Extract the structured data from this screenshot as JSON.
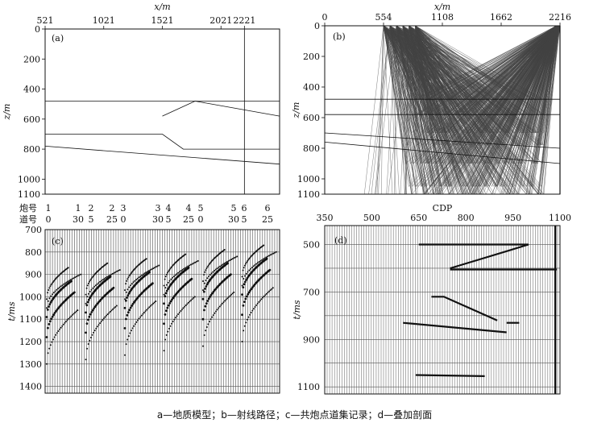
{
  "caption": "a—地质模型；b—射线路径；c—共炮点道集记录；d—叠加剖面",
  "chart_data": [
    {
      "type": "line",
      "panel": "(a)",
      "xlabel": "x/m",
      "ylabel": "z/m",
      "x_ticks": [
        521,
        1021,
        1521,
        2021,
        2221
      ],
      "y_ticks": [
        0,
        200,
        400,
        600,
        800,
        1000,
        1100
      ],
      "xlim": [
        521,
        2521
      ],
      "ylim": [
        0,
        1100
      ],
      "x_axis_position": "top",
      "vertical_line_x": 2221,
      "series": [
        {
          "x": [
            521,
            2521
          ],
          "y": [
            480,
            480
          ]
        },
        {
          "x": [
            1521,
            1800,
            2521
          ],
          "y": [
            580,
            480,
            580
          ]
        },
        {
          "x": [
            521,
            1521,
            1700,
            2521
          ],
          "y": [
            700,
            700,
            800,
            800
          ]
        },
        {
          "x": [
            521,
            2521
          ],
          "y": [
            780,
            900
          ]
        }
      ]
    },
    {
      "type": "line",
      "panel": "(b)",
      "xlabel": "x/m",
      "ylabel": "z/m",
      "x_ticks": [
        0,
        554,
        1108,
        1662,
        2216
      ],
      "y_ticks": [
        0,
        200,
        400,
        600,
        800,
        1000,
        1100
      ],
      "xlim": [
        0,
        2216
      ],
      "ylim": [
        0,
        1100
      ],
      "x_axis_position": "top",
      "vertical_line_x": 2216,
      "series": [
        {
          "x": [
            0,
            2216
          ],
          "y": [
            480,
            480
          ]
        },
        {
          "x": [
            0,
            2216
          ],
          "y": [
            580,
            580
          ]
        },
        {
          "x": [
            0,
            2216
          ],
          "y": [
            700,
            800
          ]
        },
        {
          "x": [
            0,
            2216
          ],
          "y": [
            760,
            900
          ]
        }
      ],
      "note_rays": "dense ray paths from shots near x 554–880 to receivers near x 2216"
    },
    {
      "type": "scatter",
      "panel": "(c)",
      "ylabel": "t/ms",
      "row_labels": [
        "炮号",
        "道号"
      ],
      "shot_numbers": [
        "1",
        "1",
        "2",
        "2",
        "3",
        "3",
        "4",
        "4",
        "5",
        "5",
        "6",
        "6"
      ],
      "trace_numbers": [
        "0",
        "30",
        "5",
        "25",
        "0",
        "30",
        "5",
        "25",
        "0",
        "30",
        "5",
        "25"
      ],
      "y_ticks": [
        700,
        800,
        900,
        1000,
        1100,
        1200,
        1300,
        1400
      ],
      "ylim": [
        700,
        1430
      ],
      "grid": true
    },
    {
      "type": "line",
      "panel": "(d)",
      "xlabel": "CDP",
      "ylabel": "t/ms",
      "x_ticks": [
        350,
        500,
        650,
        800,
        950,
        1100
      ],
      "y_ticks": [
        500,
        700,
        900,
        1100
      ],
      "xlim": [
        350,
        1100
      ],
      "ylim": [
        420,
        1130
      ],
      "x_axis_position": "top",
      "grid": true,
      "series": [
        {
          "x": [
            650,
            1000
          ],
          "y": [
            500,
            500
          ]
        },
        {
          "x": [
            750,
            1000
          ],
          "y": [
            600,
            500
          ]
        },
        {
          "x": [
            750,
            1090
          ],
          "y": [
            605,
            605
          ]
        },
        {
          "x": [
            690,
            730,
            900
          ],
          "y": [
            720,
            720,
            820
          ]
        },
        {
          "x": [
            600,
            930
          ],
          "y": [
            830,
            870
          ]
        },
        {
          "x": [
            930,
            970
          ],
          "y": [
            830,
            830
          ]
        },
        {
          "x": [
            640,
            860
          ],
          "y": [
            1050,
            1055
          ]
        },
        {
          "x": [
            1085,
            1085
          ],
          "y": [
            420,
            1130
          ]
        }
      ]
    }
  ]
}
